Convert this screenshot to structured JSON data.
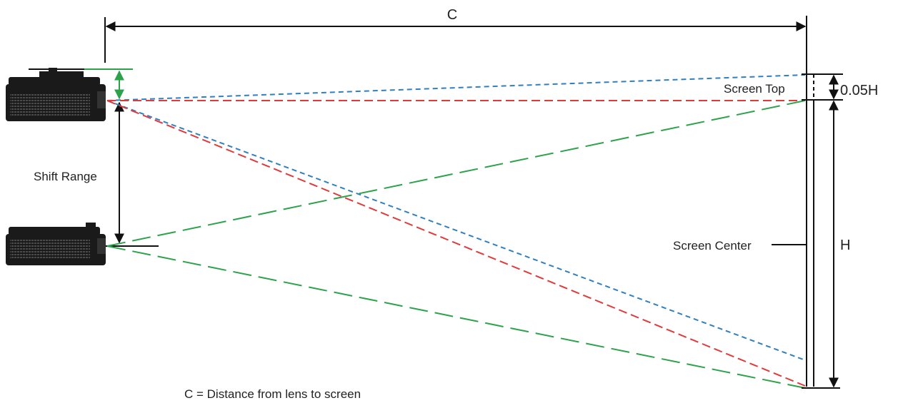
{
  "labels": {
    "distance_symbol": "C",
    "height_symbol": "H",
    "offset": "0.05H",
    "screen_top": "Screen Top",
    "screen_center": "Screen Center",
    "shift_range": "Shift Range",
    "caption": "C = Distance from lens to screen"
  },
  "colors": {
    "blue_beam": "#2f7fc1",
    "red_beam": "#e03a3a",
    "green_beam": "#2ca34a",
    "line": "#111111",
    "projector_body": "#1a1a1a",
    "projector_vent": "#555555"
  }
}
